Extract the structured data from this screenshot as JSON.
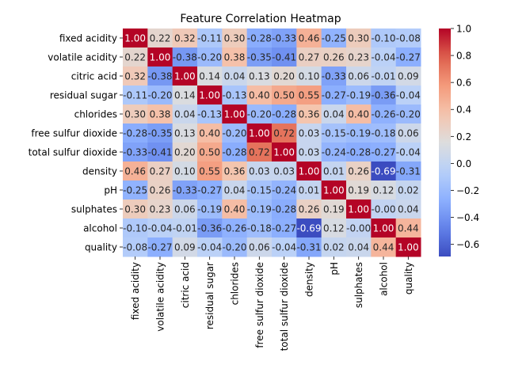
{
  "chart_data": {
    "type": "heatmap",
    "title": "Feature Correlation Heatmap",
    "colormap": "coolwarm",
    "vmin": -0.69,
    "vmax": 1.0,
    "colorbar_ticks": [
      "1.0",
      "0.8",
      "0.6",
      "0.4",
      "0.2",
      "0.0",
      "−0.2",
      "−0.4",
      "−0.6"
    ],
    "colorbar_tick_values": [
      1.0,
      0.8,
      0.6,
      0.4,
      0.2,
      0.0,
      -0.2,
      -0.4,
      -0.6
    ],
    "rows": [
      "fixed acidity",
      "volatile acidity",
      "citric acid",
      "residual sugar",
      "chlorides",
      "free sulfur dioxide",
      "total sulfur dioxide",
      "density",
      "pH",
      "sulphates",
      "alcohol",
      "quality"
    ],
    "columns": [
      "fixed acidity",
      "volatile acidity",
      "citric acid",
      "residual sugar",
      "chlorides",
      "free sulfur dioxide",
      "total sulfur dioxide",
      "density",
      "pH",
      "sulphates",
      "alcohol",
      "quality"
    ],
    "values": [
      [
        1.0,
        0.22,
        0.32,
        -0.11,
        0.3,
        -0.28,
        -0.33,
        0.46,
        -0.25,
        0.3,
        -0.1,
        -0.08
      ],
      [
        0.22,
        1.0,
        -0.38,
        -0.2,
        0.38,
        -0.35,
        -0.41,
        0.27,
        0.26,
        0.23,
        -0.04,
        -0.27
      ],
      [
        0.32,
        -0.38,
        1.0,
        0.14,
        0.04,
        0.13,
        0.2,
        0.1,
        -0.33,
        0.06,
        -0.01,
        0.09
      ],
      [
        -0.11,
        -0.2,
        0.14,
        1.0,
        -0.13,
        0.4,
        0.5,
        0.55,
        -0.27,
        -0.19,
        -0.36,
        -0.04
      ],
      [
        0.3,
        0.38,
        0.04,
        -0.13,
        1.0,
        -0.2,
        -0.28,
        0.36,
        0.04,
        0.4,
        -0.26,
        -0.2
      ],
      [
        -0.28,
        -0.35,
        0.13,
        0.4,
        -0.2,
        1.0,
        0.72,
        0.03,
        -0.15,
        -0.19,
        -0.18,
        0.06
      ],
      [
        -0.33,
        -0.41,
        0.2,
        0.5,
        -0.28,
        0.72,
        1.0,
        0.03,
        -0.24,
        -0.28,
        -0.27,
        -0.04
      ],
      [
        0.46,
        0.27,
        0.1,
        0.55,
        0.36,
        0.03,
        0.03,
        1.0,
        0.01,
        0.26,
        -0.69,
        -0.31
      ],
      [
        -0.25,
        0.26,
        -0.33,
        -0.27,
        0.04,
        -0.15,
        -0.24,
        0.01,
        1.0,
        0.19,
        0.12,
        0.02
      ],
      [
        0.3,
        0.23,
        0.06,
        -0.19,
        0.4,
        -0.19,
        -0.28,
        0.26,
        0.19,
        1.0,
        -0.0,
        0.04
      ],
      [
        -0.1,
        -0.04,
        -0.01,
        -0.36,
        -0.26,
        -0.18,
        -0.27,
        -0.69,
        0.12,
        -0.0,
        1.0,
        0.44
      ],
      [
        -0.08,
        -0.27,
        0.09,
        -0.04,
        -0.2,
        0.06,
        -0.04,
        -0.31,
        0.02,
        0.04,
        0.44,
        1.0
      ]
    ]
  }
}
